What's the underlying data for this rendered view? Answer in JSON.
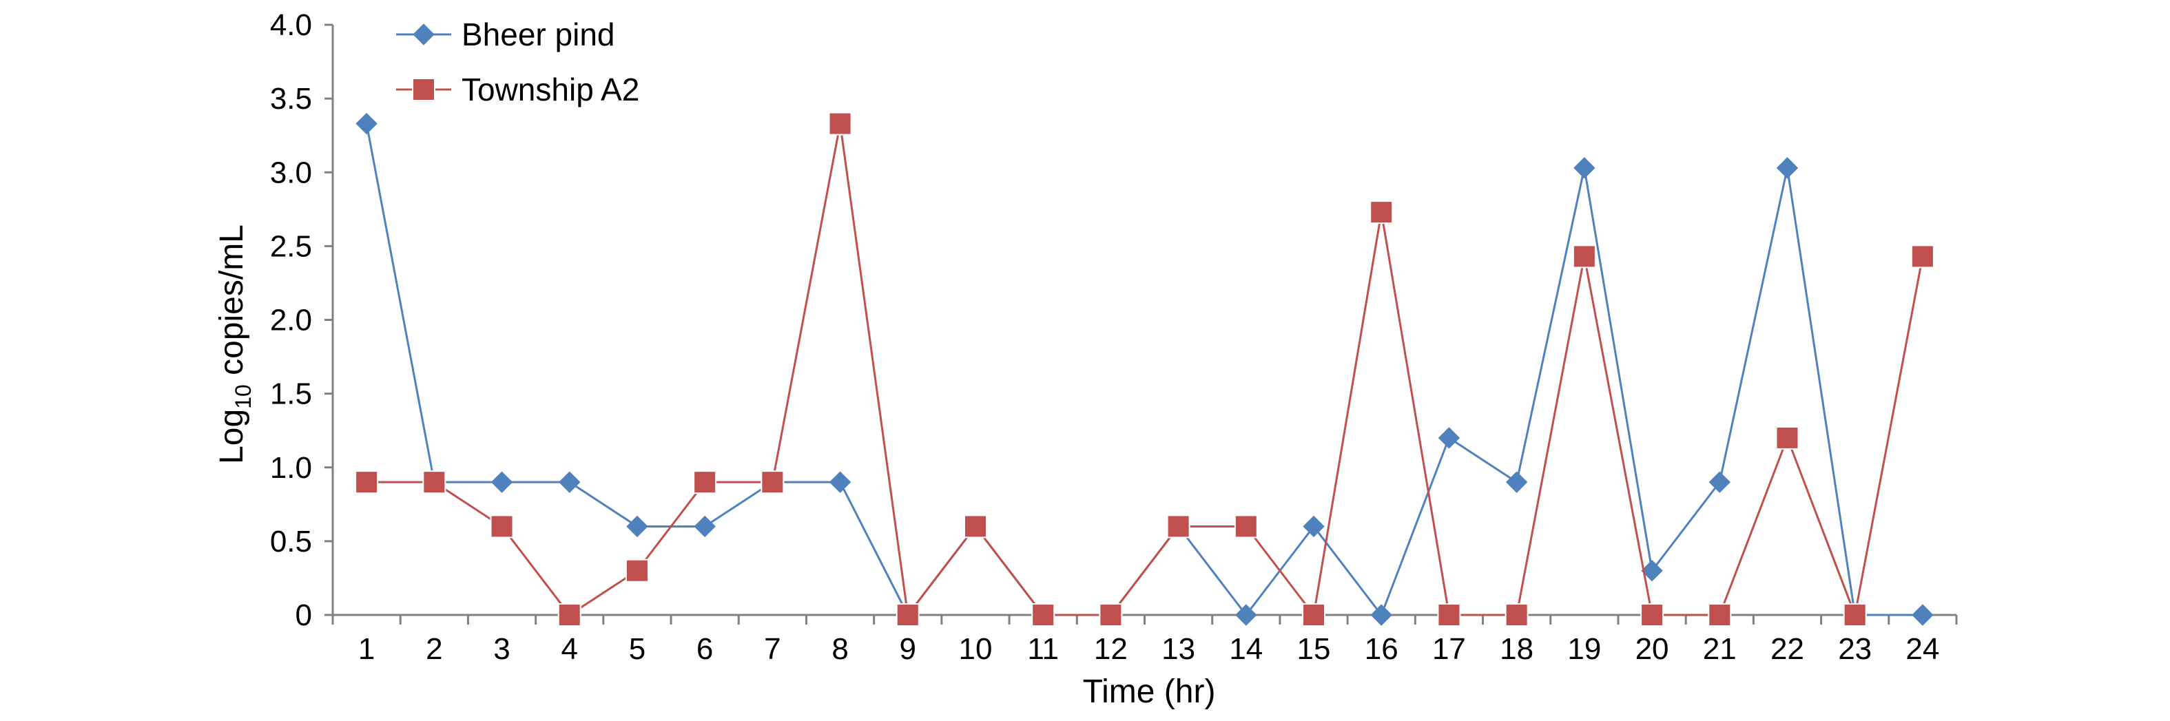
{
  "chart_data": {
    "type": "line",
    "xlabel": "Time (hr)",
    "ylabel_main": "Log",
    "ylabel_sub": "10",
    "ylabel_rest": " copies/mL",
    "ylim": [
      0,
      4.0
    ],
    "y_ticks": [
      "0",
      "0.5",
      "1.0",
      "1.5",
      "2.0",
      "2.5",
      "3.0",
      "3.5",
      "4.0"
    ],
    "categories": [
      "1",
      "2",
      "3",
      "4",
      "5",
      "6",
      "7",
      "8",
      "9",
      "10",
      "11",
      "12",
      "13",
      "14",
      "15",
      "16",
      "17",
      "18",
      "19",
      "20",
      "21",
      "22",
      "23",
      "24"
    ],
    "legend_position": "top-left",
    "grid": false,
    "series": [
      {
        "name": "Bheer pind",
        "color": "#4F81BD",
        "marker": "diamond",
        "values": [
          3.33,
          0.9,
          0.9,
          0.9,
          0.6,
          0.6,
          0.9,
          0.9,
          0,
          0.6,
          0,
          0,
          0.6,
          0,
          0.6,
          0,
          1.2,
          0.9,
          3.03,
          0.3,
          0.9,
          3.03,
          0,
          0
        ]
      },
      {
        "name": "Township A2",
        "color": "#C0504D",
        "marker": "square",
        "values": [
          0.9,
          0.9,
          0.6,
          0,
          0.3,
          0.9,
          0.9,
          3.33,
          0,
          0.6,
          0,
          0,
          0.6,
          0.6,
          0,
          2.73,
          0,
          0,
          2.43,
          0,
          0,
          1.2,
          0,
          2.43
        ]
      }
    ]
  }
}
